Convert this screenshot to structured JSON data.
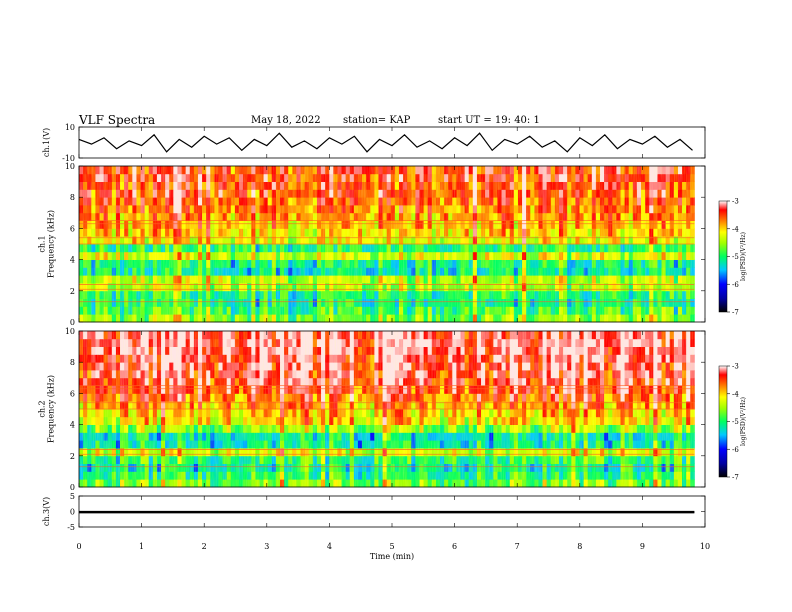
{
  "header": {
    "title": "VLF Spectra",
    "date": "May 18, 2022",
    "station": "station= KAP",
    "start": "start  UT =   19: 40: 1"
  },
  "chart_data": [
    {
      "type": "line",
      "ylabel": "ch.1(V)",
      "ylim": [
        -10,
        10
      ],
      "yticks": [
        10,
        -10
      ],
      "xlim": [
        0,
        9.83
      ],
      "x": [
        0,
        0.2,
        0.4,
        0.6,
        0.8,
        1.0,
        1.2,
        1.4,
        1.6,
        1.8,
        2.0,
        2.2,
        2.4,
        2.6,
        2.8,
        3.0,
        3.2,
        3.4,
        3.6,
        3.8,
        4.0,
        4.2,
        4.4,
        4.6,
        4.8,
        5.0,
        5.2,
        5.4,
        5.6,
        5.8,
        6.0,
        6.2,
        6.4,
        6.6,
        6.8,
        7.0,
        7.2,
        7.4,
        7.6,
        7.8,
        8.0,
        8.2,
        8.4,
        8.6,
        8.8,
        9.0,
        9.2,
        9.4,
        9.6,
        9.8
      ],
      "y": [
        2,
        -1,
        3,
        -4,
        1,
        -2,
        5,
        -6,
        2,
        -3,
        4,
        -1,
        3,
        -5,
        2,
        -2,
        6,
        -3,
        1,
        -4,
        3,
        -1,
        4,
        -6,
        2,
        -2,
        5,
        -3,
        1,
        -4,
        3,
        -2,
        6,
        -5,
        2,
        -1,
        4,
        -3,
        1,
        -6,
        3,
        -2,
        5,
        -4,
        2,
        -1,
        4,
        -3,
        2,
        -5
      ],
      "line_color": "#000000"
    },
    {
      "type": "heatmap",
      "ylabel": "ch.1\nFrequency  (kHz)",
      "ylim": [
        0,
        10
      ],
      "yticks": [
        0,
        2,
        4,
        6,
        8,
        10
      ],
      "xlim": [
        0,
        9.83
      ],
      "freq_rows": [
        0.25,
        0.75,
        1.25,
        1.75,
        2.25,
        2.75,
        3.25,
        3.75,
        4.25,
        4.75,
        5.25,
        5.75,
        6.25,
        6.75,
        7.25,
        7.75,
        8.25,
        8.75,
        9.25,
        9.75
      ],
      "mean_log_psd": [
        -4.6,
        -4.9,
        -5.1,
        -5.0,
        -4.5,
        -4.4,
        -5.2,
        -5.1,
        -4.3,
        -5.0,
        -4.2,
        -4.0,
        -3.9,
        -3.8,
        -3.7,
        -3.6,
        -3.5,
        -3.5,
        -3.4,
        -3.4
      ],
      "colorbar": {
        "label": "log(PSD)(V²/Hz)",
        "range": [
          -7,
          -3
        ],
        "ticks": [
          -3,
          -4,
          -5,
          -6,
          -7
        ]
      }
    },
    {
      "type": "heatmap",
      "ylabel": "ch.2\nFrequency  (kHz)",
      "ylim": [
        0,
        10
      ],
      "yticks": [
        0,
        2,
        4,
        6,
        8,
        10
      ],
      "xlim": [
        0,
        9.83
      ],
      "freq_rows": [
        0.25,
        0.75,
        1.25,
        1.75,
        2.25,
        2.75,
        3.25,
        3.75,
        4.25,
        4.75,
        5.25,
        5.75,
        6.25,
        6.75,
        7.25,
        7.75,
        8.25,
        8.75,
        9.25,
        9.75
      ],
      "mean_log_psd": [
        -4.7,
        -5.0,
        -5.2,
        -5.0,
        -4.3,
        -5.2,
        -5.3,
        -4.6,
        -4.1,
        -4.0,
        -3.8,
        -3.6,
        -3.4,
        -3.3,
        -3.3,
        -3.2,
        -3.2,
        -3.1,
        -3.1,
        -3.1
      ],
      "colorbar": {
        "label": "log(PSD)(V²/Hz)",
        "range": [
          -7,
          -3
        ],
        "ticks": [
          -3,
          -4,
          -5,
          -6,
          -7
        ]
      }
    },
    {
      "type": "line",
      "ylabel": "ch.3(V)",
      "ylim": [
        -5,
        5
      ],
      "yticks": [
        5,
        0,
        -5
      ],
      "xlim": [
        0,
        9.83
      ],
      "x": [
        0,
        9.83
      ],
      "y": [
        -0.2,
        -0.2
      ],
      "band": [
        -0.6,
        0.2
      ],
      "line_color": "#000000"
    }
  ],
  "x_axis": {
    "label": "Time  (min)",
    "lim": [
      0,
      10
    ],
    "ticks": [
      0,
      1,
      2,
      3,
      4,
      5,
      6,
      7,
      8,
      9,
      10
    ]
  }
}
